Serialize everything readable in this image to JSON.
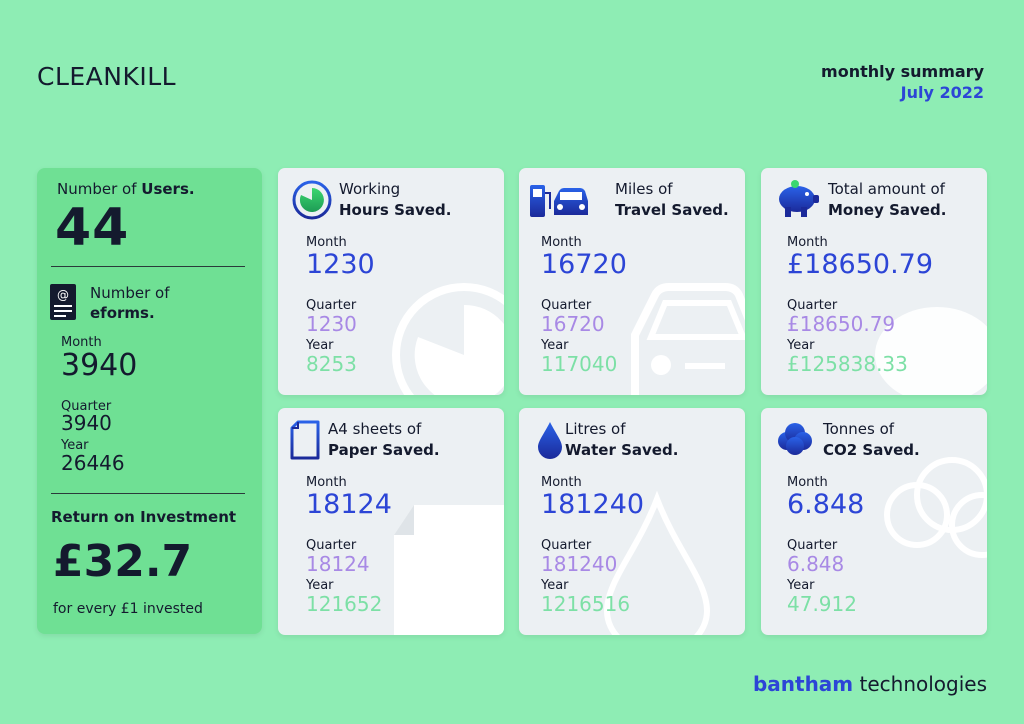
{
  "brand": "CLEANKILL",
  "header": {
    "line1": "monthly summary",
    "line2": "July 2022"
  },
  "users": {
    "label_prefix": "Number of ",
    "label_bold": "Users.",
    "value": "44"
  },
  "eforms": {
    "label_line1": "Number of",
    "label_line2": "eforms.",
    "month_label": "Month",
    "month": "3940",
    "quarter_label": "Quarter",
    "quarter": "3940",
    "year_label": "Year",
    "year": "26446"
  },
  "roi": {
    "label": "Return on Investment",
    "value": "£32.7",
    "sub": "for every £1 invested"
  },
  "cards": [
    {
      "line1": "Working",
      "line2": "Hours Saved.",
      "icon": "clock-icon",
      "month_label": "Month",
      "month": "1230",
      "quarter_label": "Quarter",
      "quarter": "1230",
      "year_label": "Year",
      "year": "8253"
    },
    {
      "line1": "Miles of",
      "line2": "Travel Saved.",
      "icon": "fuel-car-icon",
      "month_label": "Month",
      "month": "16720",
      "quarter_label": "Quarter",
      "quarter": "16720",
      "year_label": "Year",
      "year": "117040"
    },
    {
      "line1": "Total amount of",
      "line2": "Money Saved.",
      "icon": "piggy-bank-icon",
      "month_label": "Month",
      "month": "£18650.79",
      "quarter_label": "Quarter",
      "quarter": "£18650.79",
      "year_label": "Year",
      "year": "£125838.33"
    },
    {
      "line1": "A4 sheets of",
      "line2": "Paper Saved.",
      "icon": "paper-icon",
      "month_label": "Month",
      "month": "18124",
      "quarter_label": "Quarter",
      "quarter": "18124",
      "year_label": "Year",
      "year": "121652"
    },
    {
      "line1": "Litres of",
      "line2": "Water Saved.",
      "icon": "water-drop-icon",
      "month_label": "Month",
      "month": "181240",
      "quarter_label": "Quarter",
      "quarter": "181240",
      "year_label": "Year",
      "year": "1216516"
    },
    {
      "line1": "Tonnes of",
      "line2": "CO2 Saved.",
      "icon": "cloud-icon",
      "month_label": "Month",
      "month": "6.848",
      "quarter_label": "Quarter",
      "quarter": "6.848",
      "year_label": "Year",
      "year": "47.912"
    }
  ],
  "footer": {
    "bold": "bantham",
    "rest": " technologies"
  },
  "colors": {
    "background": "#8eedb4",
    "panel": "#6fe094",
    "month": "#2c45d6",
    "quarter": "#a889e5",
    "year": "#7de0a6",
    "card": "#ecf0f3"
  }
}
